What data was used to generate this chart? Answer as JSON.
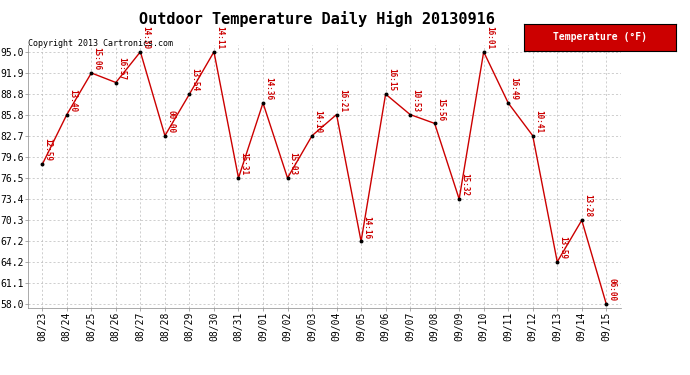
{
  "title": "Outdoor Temperature Daily High 20130916",
  "copyright": "Copyright 2013 Cartronics.com",
  "legend_label": "Temperature (°F)",
  "dates": [
    "08/23",
    "08/24",
    "08/25",
    "08/26",
    "08/27",
    "08/28",
    "08/29",
    "08/30",
    "08/31",
    "09/01",
    "09/02",
    "09/03",
    "09/04",
    "09/05",
    "09/06",
    "09/07",
    "09/08",
    "09/09",
    "09/10",
    "09/11",
    "09/12",
    "09/13",
    "09/14",
    "09/15"
  ],
  "temps": [
    78.5,
    85.8,
    91.9,
    90.5,
    95.0,
    82.7,
    88.8,
    95.0,
    76.5,
    87.5,
    76.5,
    82.7,
    85.8,
    67.2,
    88.8,
    85.8,
    84.5,
    73.4,
    95.0,
    87.5,
    82.7,
    64.2,
    70.3,
    58.0
  ],
  "time_labels": [
    "12:59",
    "13:40",
    "15:06",
    "16:57",
    "14:30",
    "00:00",
    "13:54",
    "14:11",
    "15:31",
    "14:36",
    "15:03",
    "14:10",
    "16:21",
    "14:16",
    "16:15",
    "10:53",
    "15:56",
    "15:32",
    "16:01",
    "16:49",
    "10:41",
    "13:59",
    "13:28",
    "06:00"
  ],
  "ylim_min": 57.5,
  "ylim_max": 96.0,
  "yticks": [
    58.0,
    61.1,
    64.2,
    67.2,
    70.3,
    73.4,
    76.5,
    79.6,
    82.7,
    85.8,
    88.8,
    91.9,
    95.0
  ],
  "line_color": "#cc0000",
  "marker_color": "#000000",
  "label_color": "#cc0000",
  "bg_color": "#ffffff",
  "grid_color": "#bbbbbb",
  "legend_bg": "#cc0000",
  "legend_fg": "#ffffff",
  "title_fontsize": 11,
  "tick_fontsize": 7,
  "label_fontsize": 6,
  "copyright_fontsize": 6
}
